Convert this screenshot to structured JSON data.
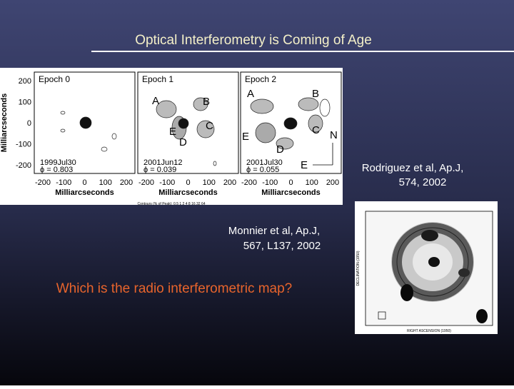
{
  "title": "Optical Interferometry is Coming of Age",
  "figure_left": {
    "y_axis_label": "Milliarcseconds",
    "x_axis_label": "Milliarcseconds",
    "yticks": [
      "200",
      "100",
      "0",
      "-100",
      "-200"
    ],
    "xticks": [
      "-200",
      "-100",
      "0",
      "100",
      "200"
    ],
    "panels": [
      {
        "label": "Epoch 0",
        "date": "1999Jul30",
        "phase": "ϕ = 0.803",
        "components": []
      },
      {
        "label": "Epoch 1",
        "date": "2001Jun12",
        "phase": "ϕ = 0.039",
        "components": [
          "A",
          "B",
          "C",
          "D",
          "E"
        ]
      },
      {
        "label": "Epoch 2",
        "date": "2001Jul30",
        "phase": "ϕ = 0.055",
        "components": [
          "A",
          "B",
          "C",
          "D",
          "E"
        ]
      }
    ],
    "compass": [
      "N",
      "E"
    ],
    "contours_caption": "Contours (% of Peak): 0.5  1  2  4  8  16  32  64"
  },
  "caption_right": [
    "Rodriguez et al, Ap.J,",
    "574, 2002"
  ],
  "caption_left": [
    "Monnier et al, Ap.J,",
    "567, L137, 2002"
  ],
  "question": "Which is the radio interferometric map?",
  "figure_right": {
    "x_axis_label": "RIGHT ASCENSION (1950)",
    "y_axis_label": "DECLINATION (1950)"
  }
}
